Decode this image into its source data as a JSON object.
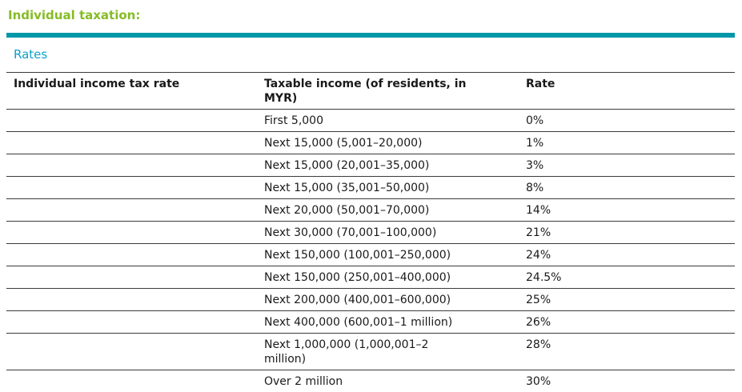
{
  "header": {
    "title": "Individual taxation:",
    "section_label": "Rates"
  },
  "colors": {
    "heading_green": "#86BC25",
    "divider_teal": "#0097A9",
    "section_cyan": "#0DA0C9",
    "rule_gray": "#3b3b3b",
    "text": "#1a1a1a"
  },
  "table": {
    "columns": [
      "Individual income tax rate",
      "Taxable income (of residents, in\nMYR)",
      "Rate"
    ],
    "rows": [
      {
        "cells": [
          "",
          "First 5,000",
          "0%"
        ]
      },
      {
        "cells": [
          "",
          "Next 15,000 (5,001–20,000)",
          "1%"
        ]
      },
      {
        "cells": [
          "",
          "Next 15,000 (20,001–35,000)",
          "3%"
        ]
      },
      {
        "cells": [
          "",
          "Next 15,000 (35,001–50,000)",
          "8%"
        ]
      },
      {
        "cells": [
          "",
          "Next 20,000 (50,001–70,000)",
          "14%"
        ]
      },
      {
        "cells": [
          "",
          "Next 30,000 (70,001–100,000)",
          "21%"
        ]
      },
      {
        "cells": [
          "",
          "Next 150,000 (100,001–250,000)",
          "24%"
        ]
      },
      {
        "cells": [
          "",
          "Next 150,000 (250,001–400,000)",
          "24.5%"
        ]
      },
      {
        "cells": [
          "",
          "Next 200,000 (400,001–600,000)",
          "25%"
        ]
      },
      {
        "cells": [
          "",
          "Next 400,000 (600,001–1 million)",
          "26%"
        ]
      },
      {
        "cells": [
          "",
          "Next 1,000,000 (1,000,001–2\nmillion)",
          "28%"
        ]
      },
      {
        "cells": [
          "",
          "Over 2 million",
          "30%"
        ]
      }
    ]
  }
}
